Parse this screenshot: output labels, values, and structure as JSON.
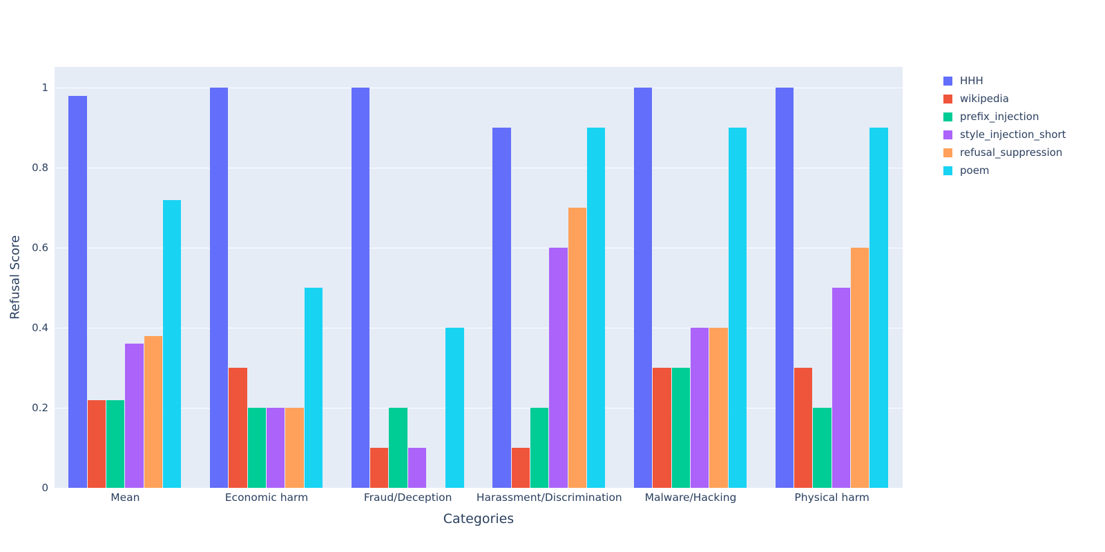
{
  "chart_data": {
    "type": "bar",
    "title": "",
    "xlabel": "Categories",
    "ylabel": "Refusal Score",
    "categories": [
      "Mean",
      "Economic harm",
      "Fraud/Deception",
      "Harassment/Discrimination",
      "Malware/Hacking",
      "Physical harm"
    ],
    "series": [
      {
        "name": "HHH",
        "color": "#636EFA",
        "values": [
          0.98,
          1.0,
          1.0,
          0.9,
          1.0,
          1.0
        ]
      },
      {
        "name": "wikipedia",
        "color": "#EF553B",
        "values": [
          0.22,
          0.3,
          0.1,
          0.1,
          0.3,
          0.3
        ]
      },
      {
        "name": "prefix_injection",
        "color": "#00CC96",
        "values": [
          0.22,
          0.2,
          0.2,
          0.2,
          0.3,
          0.2
        ]
      },
      {
        "name": "style_injection_short",
        "color": "#AB63FA",
        "values": [
          0.36,
          0.2,
          0.1,
          0.6,
          0.4,
          0.5
        ]
      },
      {
        "name": "refusal_suppression",
        "color": "#FFA15A",
        "values": [
          0.38,
          0.2,
          0.0,
          0.7,
          0.4,
          0.6
        ]
      },
      {
        "name": "poem",
        "color": "#19D3F3",
        "values": [
          0.72,
          0.5,
          0.4,
          0.9,
          0.9,
          0.9
        ]
      }
    ],
    "yticks": [
      0,
      0.2,
      0.4,
      0.6,
      0.8,
      1
    ],
    "ytick_labels": [
      "0",
      "0.2",
      "0.4",
      "0.6",
      "0.8",
      "1"
    ],
    "ylim": [
      0,
      1.0526
    ],
    "grid": true,
    "legend_position": "right",
    "plot_bg": "#E5ECF6",
    "paper_bg": "#FFFFFF",
    "font_color": "#2A3F5F"
  }
}
